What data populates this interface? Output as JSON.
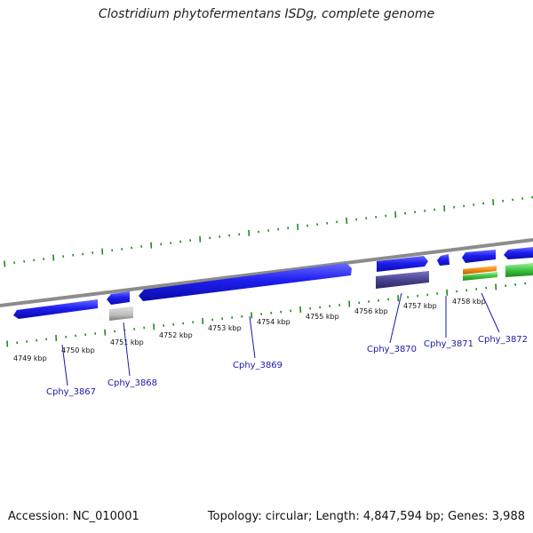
{
  "title": "Clostridium phytofermentans ISDg, complete genome",
  "footer": {
    "accession": "Accession: NC_010001",
    "summary": "Topology: circular; Length: 4,847,594 bp; Genes: 3,988"
  },
  "colors": {
    "backbone": "#8c8c8c",
    "ticks": "#1f8a1f",
    "gene_blue": "#1f1ff0",
    "gene_purple": "#4a4490",
    "gene_gray": "#bdbdbd",
    "gene_orange": "#f08a14",
    "gene_green": "#3fc43f",
    "label": "#1a1aa8"
  },
  "scale_labels": [
    "4749 kbp",
    "4750 kbp",
    "4751 kbp",
    "4752 kbp",
    "4753 kbp",
    "4754 kbp",
    "4755 kbp",
    "4756 kbp",
    "4757 kbp",
    "4758 kbp"
  ],
  "gene_labels": [
    "Cphy_3867",
    "Cphy_3868",
    "Cphy_3869",
    "Cphy_3870",
    "Cphy_3871",
    "Cphy_3872"
  ]
}
